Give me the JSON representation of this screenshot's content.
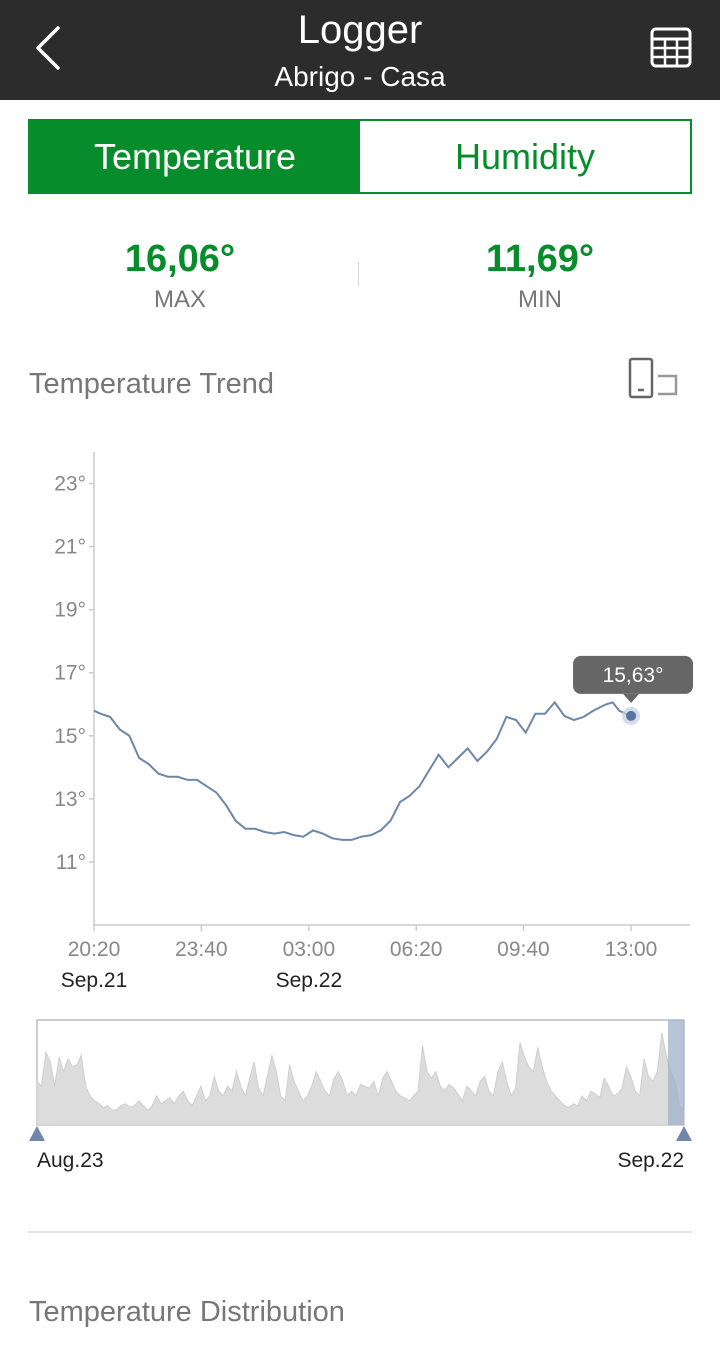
{
  "header": {
    "title": "Logger",
    "subtitle": "Abrigo - Casa",
    "back_icon": "chevron-left-icon",
    "table_icon": "table-grid-icon"
  },
  "tabs": [
    {
      "label": "Temperature",
      "active": true
    },
    {
      "label": "Humidity",
      "active": false
    }
  ],
  "stats": {
    "max": {
      "value": "16,06°",
      "label": "MAX"
    },
    "min": {
      "value": "11,69°",
      "label": "MIN"
    }
  },
  "trend": {
    "title": "Temperature Trend",
    "rotate_icon": "rotate-screen-icon",
    "tooltip": "15,63°"
  },
  "distribution": {
    "title": "Temperature Distribution"
  },
  "colors": {
    "accent_green": "#068c2a",
    "line": "#6e87a8",
    "header_bg": "#2c2c2c"
  },
  "chart_data": {
    "type": "line",
    "y_ticks": [
      "23°",
      "21°",
      "19°",
      "17°",
      "15°",
      "13°",
      "11°"
    ],
    "y_tick_values": [
      23,
      21,
      19,
      17,
      15,
      13,
      11
    ],
    "ylim": [
      9,
      24
    ],
    "x_ticks": [
      "20:20",
      "23:40",
      "03:00",
      "06:20",
      "09:40",
      "13:00"
    ],
    "x_dates": [
      {
        "label": "Sep.21",
        "at": "20:20"
      },
      {
        "label": "Sep.22",
        "at": "03:00"
      }
    ],
    "x_hours_from_start": [
      0,
      3.33,
      6.67,
      10,
      13.33,
      16.67
    ],
    "xlim_hours": [
      0,
      18.5
    ],
    "series": [
      {
        "x": [
          0,
          0.2,
          0.5,
          0.8,
          1.1,
          1.4,
          1.7,
          2.0,
          2.3,
          2.6,
          2.9,
          3.2,
          3.5,
          3.8,
          4.1,
          4.4,
          4.7,
          5.0,
          5.3,
          5.6,
          5.9,
          6.2,
          6.5,
          6.8,
          7.1,
          7.4,
          7.7,
          8.0,
          8.3,
          8.6,
          8.9,
          9.2,
          9.5,
          9.8,
          10.1,
          10.4,
          10.7,
          11.0,
          11.3,
          11.6,
          11.9,
          12.2,
          12.5,
          12.8,
          13.1,
          13.4,
          13.7,
          14.0,
          14.3,
          14.6,
          14.9,
          15.2,
          15.5,
          15.7,
          15.9,
          16.1,
          16.3,
          16.5,
          16.67
        ],
        "values": [
          15.8,
          15.7,
          15.6,
          15.2,
          15.0,
          14.3,
          14.1,
          13.8,
          13.7,
          13.7,
          13.6,
          13.6,
          13.4,
          13.2,
          12.8,
          12.3,
          12.05,
          12.05,
          11.95,
          11.9,
          11.95,
          11.85,
          11.8,
          12.0,
          11.9,
          11.75,
          11.7,
          11.7,
          11.8,
          11.85,
          12.0,
          12.3,
          12.9,
          13.1,
          13.4,
          13.9,
          14.4,
          14.0,
          14.3,
          14.6,
          14.2,
          14.5,
          14.9,
          15.6,
          15.5,
          15.1,
          15.7,
          15.7,
          16.06,
          15.63,
          15.5,
          15.6,
          15.8,
          15.9,
          16.0,
          16.06,
          15.8,
          15.7,
          15.63
        ]
      }
    ],
    "tooltip": {
      "x": 16.67,
      "y": 15.63,
      "label": "15,63°"
    },
    "range_selector": {
      "start_label": "Aug.23",
      "end_label": "Sep.22",
      "values": [
        0.45,
        0.4,
        0.75,
        0.65,
        0.4,
        0.7,
        0.55,
        0.68,
        0.6,
        0.62,
        0.72,
        0.4,
        0.3,
        0.25,
        0.22,
        0.18,
        0.2,
        0.15,
        0.16,
        0.2,
        0.22,
        0.18,
        0.2,
        0.25,
        0.2,
        0.15,
        0.2,
        0.3,
        0.22,
        0.25,
        0.28,
        0.22,
        0.3,
        0.35,
        0.25,
        0.2,
        0.3,
        0.4,
        0.25,
        0.3,
        0.5,
        0.35,
        0.3,
        0.4,
        0.35,
        0.55,
        0.4,
        0.3,
        0.48,
        0.65,
        0.38,
        0.3,
        0.5,
        0.72,
        0.55,
        0.3,
        0.25,
        0.62,
        0.45,
        0.35,
        0.25,
        0.3,
        0.4,
        0.55,
        0.45,
        0.35,
        0.3,
        0.48,
        0.55,
        0.45,
        0.3,
        0.35,
        0.3,
        0.42,
        0.4,
        0.38,
        0.45,
        0.3,
        0.48,
        0.55,
        0.45,
        0.35,
        0.3,
        0.28,
        0.25,
        0.3,
        0.35,
        0.82,
        0.55,
        0.48,
        0.55,
        0.4,
        0.35,
        0.42,
        0.38,
        0.32,
        0.25,
        0.4,
        0.35,
        0.3,
        0.45,
        0.5,
        0.35,
        0.3,
        0.55,
        0.65,
        0.45,
        0.3,
        0.38,
        0.85,
        0.7,
        0.6,
        0.55,
        0.8,
        0.6,
        0.45,
        0.35,
        0.3,
        0.25,
        0.2,
        0.18,
        0.22,
        0.2,
        0.3,
        0.25,
        0.35,
        0.32,
        0.28,
        0.48,
        0.4,
        0.3,
        0.32,
        0.38,
        0.6,
        0.5,
        0.35,
        0.3,
        0.68,
        0.5,
        0.45,
        0.55,
        0.95,
        0.72,
        0.55,
        0.45,
        0.2,
        0.15
      ]
    }
  }
}
